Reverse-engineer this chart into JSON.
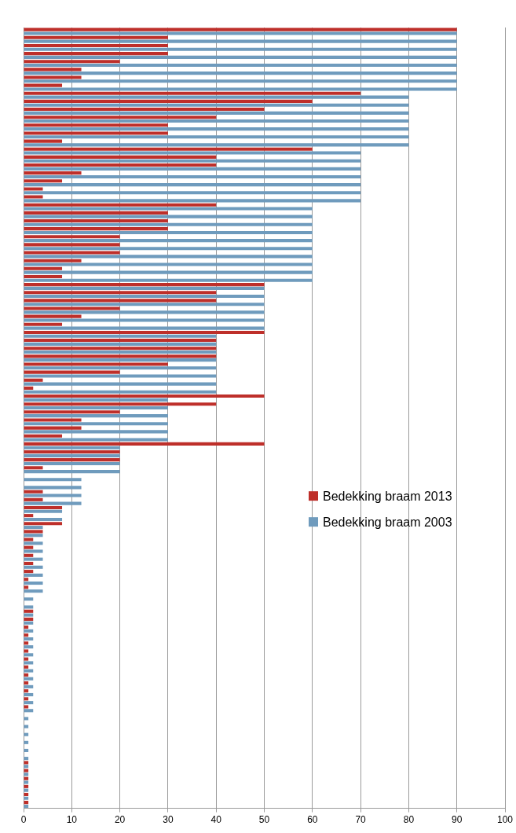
{
  "chart_data": {
    "type": "bar",
    "orientation": "horizontal",
    "categories": [
      null,
      null,
      null,
      null,
      null,
      null,
      null,
      null,
      null,
      null,
      null,
      null,
      null,
      null,
      null,
      null,
      null,
      null,
      null,
      null,
      null,
      null,
      null,
      null,
      null,
      null,
      null,
      null,
      null,
      null,
      null,
      null,
      null,
      null,
      null,
      null,
      null,
      null,
      null,
      null,
      null,
      null,
      null,
      null,
      null,
      null,
      null,
      null,
      null,
      null,
      null,
      null,
      null,
      null,
      null,
      null,
      null,
      null,
      null,
      null,
      null,
      null,
      null,
      null,
      null,
      null,
      null,
      null,
      null,
      null,
      null,
      null,
      null,
      null,
      null,
      null,
      null,
      null,
      null,
      null,
      null,
      null,
      null,
      null,
      null,
      null,
      null,
      null,
      null,
      null,
      null,
      null,
      null,
      null,
      null,
      null,
      null,
      null
    ],
    "series": [
      {
        "name": "Bedekking braam 2013",
        "color": "#be2f2a",
        "values": [
          90,
          30,
          30,
          30,
          20,
          12,
          12,
          8,
          70,
          60,
          50,
          40,
          30,
          30,
          8,
          60,
          40,
          40,
          12,
          8,
          4,
          4,
          40,
          30,
          30,
          30,
          20,
          20,
          20,
          12,
          8,
          8,
          50,
          40,
          40,
          20,
          12,
          8,
          50,
          40,
          40,
          40,
          30,
          20,
          4,
          2,
          50,
          40,
          20,
          12,
          12,
          8,
          50,
          20,
          20,
          4,
          0,
          0,
          4,
          4,
          8,
          2,
          8,
          4,
          2,
          2,
          2,
          2,
          2,
          1,
          1,
          0,
          0,
          2,
          2,
          1,
          1,
          1,
          1,
          1,
          1,
          1,
          1,
          1,
          1,
          1,
          0,
          0,
          0,
          0,
          0,
          0,
          1,
          1,
          1,
          1,
          1,
          1
        ]
      },
      {
        "name": "Bedekking braam 2003",
        "color": "#6f9bbd",
        "values": [
          90,
          90,
          90,
          90,
          90,
          90,
          90,
          90,
          80,
          80,
          80,
          80,
          80,
          80,
          80,
          70,
          70,
          70,
          70,
          70,
          70,
          70,
          60,
          60,
          60,
          60,
          60,
          60,
          60,
          60,
          60,
          60,
          50,
          50,
          50,
          50,
          50,
          50,
          40,
          40,
          40,
          40,
          40,
          40,
          40,
          40,
          30,
          30,
          30,
          30,
          30,
          30,
          20,
          20,
          20,
          20,
          12,
          12,
          12,
          12,
          8,
          8,
          4,
          4,
          4,
          4,
          4,
          4,
          4,
          4,
          4,
          2,
          2,
          2,
          2,
          2,
          2,
          2,
          2,
          2,
          2,
          2,
          2,
          2,
          2,
          2,
          1,
          1,
          1,
          1,
          1,
          1,
          1,
          1,
          1,
          1,
          1,
          1
        ]
      }
    ],
    "xlim": [
      0,
      100
    ],
    "xticks": [
      0,
      10,
      20,
      30,
      40,
      50,
      60,
      70,
      80,
      90,
      100
    ],
    "grid": "x",
    "legend": "right"
  }
}
